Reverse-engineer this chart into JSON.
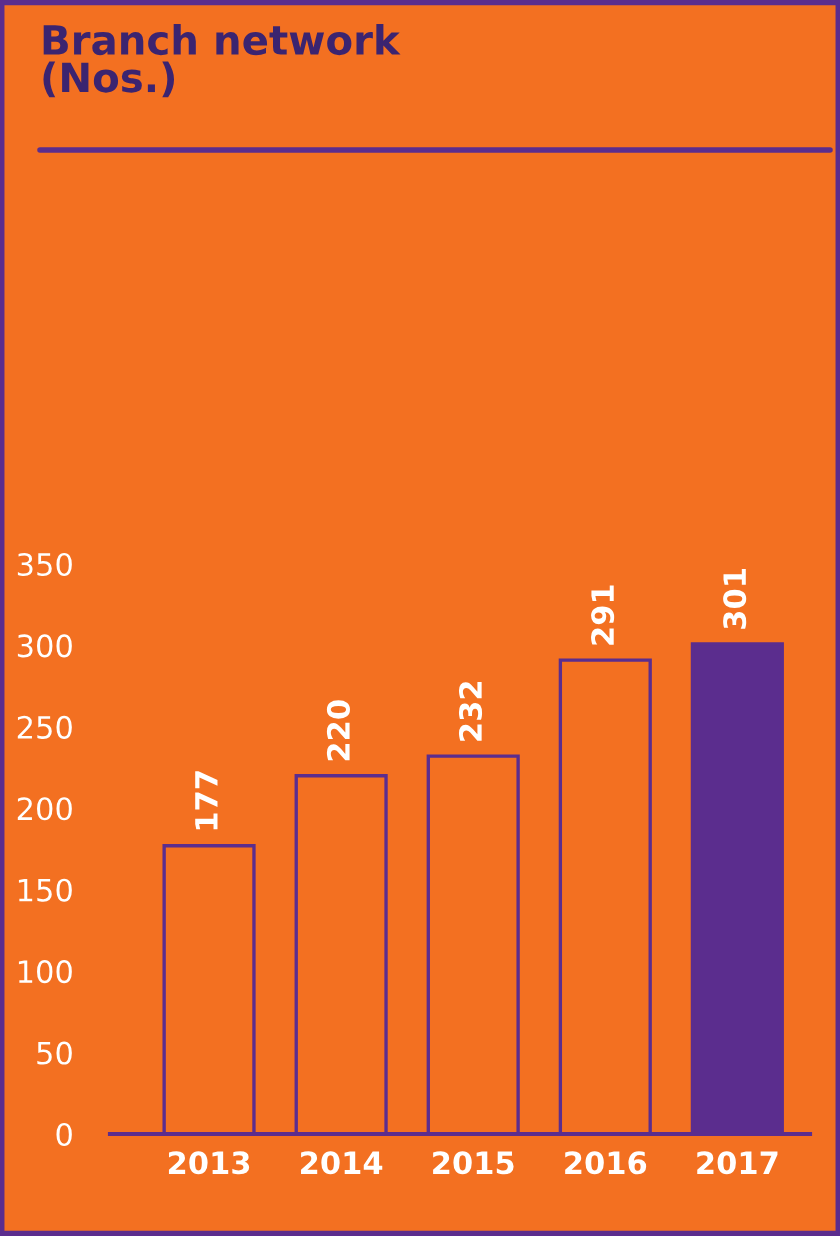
{
  "chart_data": {
    "type": "bar",
    "title": "Branch network\n(Nos.)",
    "categories": [
      "2013",
      "2014",
      "2015",
      "2016",
      "2017"
    ],
    "values": [
      177,
      220,
      232,
      291,
      301
    ],
    "colors": [
      "#f37021",
      "#f37021",
      "#f37021",
      "#f37021",
      "#5b2d8e"
    ],
    "ylim": [
      0,
      350
    ],
    "yticks": [
      0,
      50,
      100,
      150,
      200,
      250,
      300,
      350
    ],
    "data_labels": true,
    "grid": false
  }
}
